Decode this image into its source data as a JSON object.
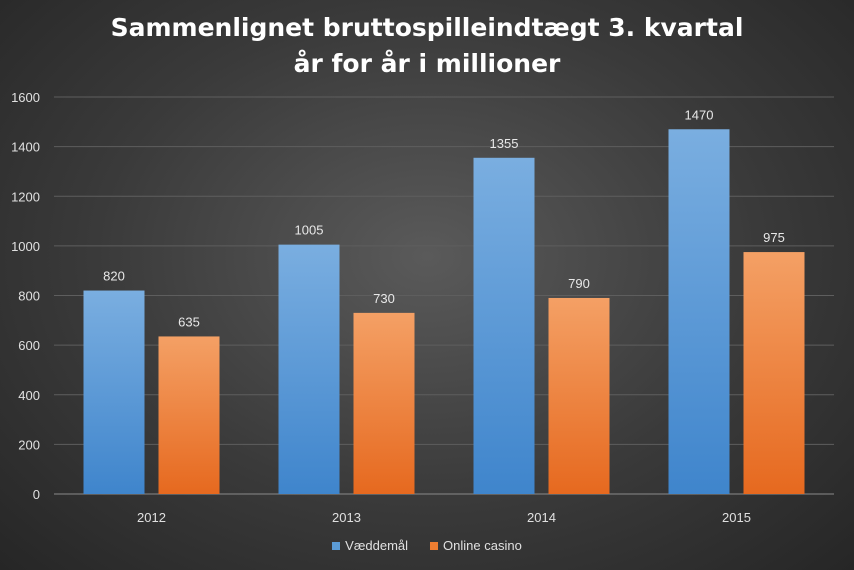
{
  "chart_data": {
    "type": "bar",
    "title_line1": "Sammenlignet  bruttospilleindtægt  3. kvartal",
    "title_line2": "år for år i millioner",
    "categories": [
      "2012",
      "2013",
      "2014",
      "2015"
    ],
    "series": [
      {
        "name": "Væddemål",
        "values": [
          820,
          1005,
          1355,
          1470
        ],
        "color": "#5b9bd5"
      },
      {
        "name": "Online casino",
        "values": [
          635,
          730,
          790,
          975
        ],
        "color": "#ed7d31"
      }
    ],
    "ylim": [
      0,
      1600
    ],
    "yticks": [
      0,
      200,
      400,
      600,
      800,
      1000,
      1200,
      1400,
      1600
    ],
    "grid": true,
    "legend_position": "bottom"
  }
}
